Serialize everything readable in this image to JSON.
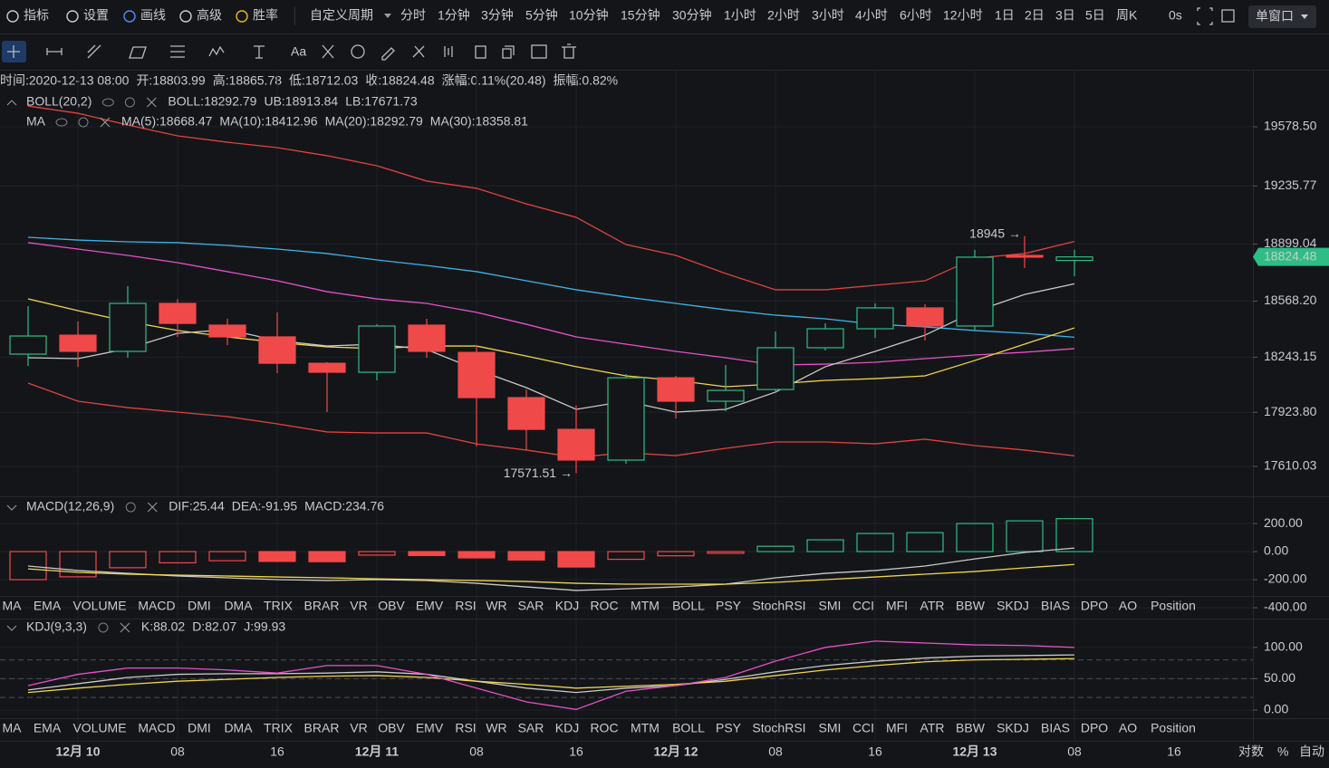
{
  "toolbar": {
    "tools": [
      {
        "text": "指标"
      },
      {
        "text": "设置"
      },
      {
        "text": "画线",
        "active": true
      },
      {
        "text": "高级"
      },
      {
        "text": "胜率",
        "accent": true
      }
    ],
    "custom_period": "自定义周期",
    "periods": [
      {
        "text": "分时"
      },
      {
        "text": "1分钟"
      },
      {
        "text": "3分钟"
      },
      {
        "text": "5分钟"
      },
      {
        "text": "10分钟"
      },
      {
        "text": "15分钟"
      },
      {
        "text": "30分钟"
      },
      {
        "text": "1小时",
        "active": true
      },
      {
        "text": "2小时"
      },
      {
        "text": "3小时"
      },
      {
        "text": "4小时",
        "active": true
      },
      {
        "text": "6小时"
      },
      {
        "text": "12小时"
      },
      {
        "text": "1日"
      },
      {
        "text": "2日"
      },
      {
        "text": "3日"
      },
      {
        "text": "5日"
      },
      {
        "text": "周K"
      }
    ],
    "countdown": "0s",
    "window": "单窗口",
    "text_tool": "Aa"
  },
  "info": [
    {
      "label": "时间:",
      "value": "2020-12-13 08:00",
      "color": "#d6d8dd"
    },
    {
      "label": "开:",
      "value": "18803.99",
      "color": "#2ebd85"
    },
    {
      "label": "高:",
      "value": "18865.78",
      "color": "#2ebd85"
    },
    {
      "label": "低:",
      "value": "18712.03",
      "color": "#2ebd85"
    },
    {
      "label": "收:",
      "value": "18824.48",
      "color": "#2ebd85"
    },
    {
      "label": "涨幅:",
      "value": "0.11%(20.48)",
      "color": "#2ebd85"
    },
    {
      "label": "振幅:",
      "value": "0.82%",
      "color": "#2ebd85"
    }
  ],
  "indicator_tabs": [
    "MA",
    "EMA",
    "VOLUME",
    "MACD",
    "DMI",
    "DMA",
    "TRIX",
    "BRAR",
    "VR",
    "OBV",
    "EMV",
    "RSI",
    "WR",
    "SAR",
    "KDJ",
    "ROC",
    "MTM",
    "BOLL",
    "PSY",
    "StochRSI",
    "SMI",
    "CCI",
    "MFI",
    "ATR",
    "BBW",
    "SKDJ",
    "BIAS",
    "DPO",
    "AO",
    "Position"
  ],
  "tab_rows": [
    {
      "active": "MACD",
      "muted": "KDJ"
    },
    {
      "active": "KDJ",
      "muted": "MACD"
    }
  ],
  "axis_footer": {
    "extra_time_label": "16",
    "log": "对数",
    "percent": "%",
    "auto": "自动"
  },
  "chart_data": {
    "type": "candlestick",
    "categories": [
      null,
      "12月 10",
      null,
      "08",
      null,
      "16",
      null,
      "12月 11",
      null,
      "08",
      null,
      "16",
      null,
      "12月 12",
      null,
      "08",
      null,
      "16",
      null,
      "12月 13",
      null,
      "08"
    ],
    "open": [
      18261,
      18371,
      18277,
      18555,
      18429,
      18361,
      18208,
      18156,
      18429,
      18271,
      18009,
      17825,
      17647,
      18124,
      17988,
      18056,
      18298,
      18408,
      18529,
      18424,
      18833,
      18803.99
    ],
    "high": [
      18539,
      18450,
      18655,
      18581,
      18466,
      18502,
      18214,
      18434,
      18466,
      18313,
      18056,
      17964,
      18146,
      18135,
      18198,
      18392,
      18440,
      18555,
      18550,
      18865,
      18945,
      18865.78
    ],
    "low": [
      18193,
      18187,
      18240,
      18361,
      18313,
      18151,
      17925,
      18109,
      18240,
      17726,
      17705,
      17571.51,
      17626,
      17888,
      17930,
      18041,
      18282,
      18355,
      18340,
      18397,
      18760,
      18712.03
    ],
    "close": [
      18366,
      18277,
      18555,
      18439,
      18361,
      18208,
      18156,
      18424,
      18277,
      18009,
      17825,
      17647,
      18124,
      17988,
      18051,
      18298,
      18408,
      18529,
      18424,
      18823,
      18823,
      18824.48
    ],
    "up_color": "#2ebd85",
    "down_color": "#f0494a",
    "ylim": [
      17437,
      19904
    ],
    "yticks": [
      {
        "value": 19578.5,
        "label": "19578.50"
      },
      19235.77,
      18899.04,
      {
        "value": 18568.2,
        "label": "18568.20"
      },
      18243.15,
      {
        "value": 17923.8,
        "label": "17923.80"
      },
      17610.03
    ],
    "grid": true,
    "series": [
      {
        "color": "#e0433f",
        "values": [
          19699,
          19657,
          19589,
          19526,
          19489,
          19458,
          19411,
          19353,
          19264,
          19222,
          19132,
          19054,
          18896,
          18833,
          18728,
          18634,
          18634,
          18660,
          18686,
          18817,
          18844,
          18913.84
        ]
      },
      {
        "color": "#e0433f",
        "values": [
          18093,
          17988,
          17951,
          17925,
          17899,
          17857,
          17810,
          17804,
          17804,
          17741,
          17705,
          17663,
          17689,
          17673,
          17715,
          17752,
          17752,
          17741,
          17768,
          17731,
          17705,
          17671.73
        ]
      },
      {
        "color": "#3bb4e6",
        "values": [
          18938,
          18922,
          18912,
          18907,
          18891,
          18870,
          18844,
          18807,
          18775,
          18739,
          18686,
          18634,
          18592,
          18555,
          18518,
          18487,
          18466,
          18434,
          18419,
          18398,
          18382,
          18358.81
        ]
      },
      {
        "color": "#e651c7",
        "values": [
          18907,
          18870,
          18833,
          18791,
          18739,
          18686,
          18623,
          18581,
          18555,
          18503,
          18434,
          18361,
          18319,
          18277,
          18240,
          18198,
          18203,
          18214,
          18235,
          18256,
          18272,
          18292.79
        ]
      },
      {
        "color": "#f1d54b",
        "values": [
          18581,
          18513,
          18450,
          18398,
          18361,
          18329,
          18303,
          18293,
          18308,
          18308,
          18250,
          18188,
          18135,
          18109,
          18072,
          18088,
          18109,
          18119,
          18135,
          18224,
          18319,
          18412.96
        ]
      },
      {
        "color": "#c8c8c8",
        "values": [
          18240,
          18235,
          18293,
          18382,
          18403,
          18340,
          18308,
          18319,
          18287,
          18172,
          18067,
          17941,
          17988,
          17925,
          17941,
          18041,
          18188,
          18277,
          18371,
          18508,
          18607,
          18668.47
        ]
      }
    ],
    "legends": [
      {
        "name": "BOLL(20,2)",
        "items": [
          {
            "text": "BOLL:18292.79",
            "color": "#4a6ae0"
          },
          {
            "text": "UB:18913.84",
            "color": "#e0433f"
          },
          {
            "text": "LB:17671.73",
            "color": "#e0433f"
          }
        ]
      },
      {
        "name": "MA",
        "items": [
          {
            "text": "MA(5):18668.47",
            "color": "#d6d8dd"
          },
          {
            "text": "MA(10):18412.96",
            "color": "#f1d54b"
          },
          {
            "text": "MA(20):18292.79",
            "color": "#e651c7"
          },
          {
            "text": "MA(30):18358.81",
            "color": "#3bb4e6"
          }
        ]
      }
    ],
    "annotations": {
      "high": "18945 →",
      "low": "17571.51 →"
    },
    "macd": {
      "legend": {
        "name": "MACD(12,26,9)",
        "items": [
          {
            "text": "DIF:25.44",
            "color": "#d6d8dd"
          },
          {
            "text": "DEA:-91.95",
            "color": "#f1d54b"
          },
          {
            "text": "MACD:234.76",
            "color": "#2ebd85"
          }
        ]
      },
      "ylim": [
        -316,
        394
      ],
      "yticks": [
        {
          "value": 200,
          "label": "200.00"
        },
        {
          "value": 0,
          "label": "0.00"
        },
        {
          "value": -200,
          "label": "-200.00"
        },
        {
          "value": -400,
          "label": "-400.00"
        }
      ],
      "histogram": [
        -200,
        -180,
        -115,
        -80,
        -65,
        -70,
        -72,
        -25,
        -28,
        -45,
        -60,
        -110,
        -55,
        -30,
        -12,
        38,
        84,
        129,
        135,
        200,
        219,
        234.76
      ],
      "series": [
        {
          "color": "#c8c8c8",
          "values": [
            -103,
            -135,
            -155,
            -174,
            -187,
            -200,
            -206,
            -200,
            -206,
            -226,
            -252,
            -277,
            -265,
            -252,
            -232,
            -187,
            -155,
            -135,
            -103,
            -52,
            -6,
            25.44
          ]
        },
        {
          "color": "#f1d54b",
          "values": [
            -123,
            -148,
            -161,
            -168,
            -174,
            -181,
            -187,
            -194,
            -200,
            -206,
            -213,
            -226,
            -232,
            -232,
            -232,
            -219,
            -200,
            -181,
            -161,
            -142,
            -116,
            -91.95
          ]
        }
      ]
    },
    "kdj": {
      "legend": {
        "name": "KDJ(9,3,3)",
        "items": [
          {
            "text": "K:88.02",
            "color": "#d6d8dd"
          },
          {
            "text": "D:82.07",
            "color": "#f1d54b"
          },
          {
            "text": "J:99.93",
            "color": "#e651c7"
          }
        ]
      },
      "ylim": [
        -13,
        146
      ],
      "yticks": [
        {
          "value": 100,
          "label": "100.00"
        },
        {
          "value": 50,
          "label": "50.00"
        },
        {
          "value": 0,
          "label": "0.00"
        }
      ],
      "levels": [
        80,
        50,
        20
      ],
      "series": [
        {
          "color": "#c8c8c8",
          "values": [
            32,
            42,
            52,
            57,
            58,
            58,
            59,
            61,
            57,
            46,
            35,
            28,
            35,
            39,
            49,
            61,
            71,
            78,
            83,
            86,
            87,
            88.02
          ]
        },
        {
          "color": "#f1d54b",
          "values": [
            28,
            35,
            41,
            46,
            49,
            52,
            54,
            55,
            52,
            46,
            41,
            35,
            38,
            41,
            46,
            55,
            64,
            71,
            77,
            80,
            81,
            82.07
          ]
        },
        {
          "color": "#e651c7",
          "values": [
            39,
            57,
            67,
            67,
            64,
            59,
            71,
            71,
            57,
            35,
            13,
            1,
            30,
            39,
            52,
            78,
            100,
            110,
            107,
            104,
            103,
            99.93
          ]
        }
      ]
    }
  }
}
